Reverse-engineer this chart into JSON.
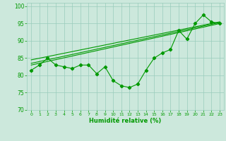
{
  "x": [
    0,
    1,
    2,
    3,
    4,
    5,
    6,
    7,
    8,
    9,
    10,
    11,
    12,
    13,
    14,
    15,
    16,
    17,
    18,
    19,
    20,
    21,
    22,
    23
  ],
  "y": [
    81.5,
    83,
    85,
    83,
    82.5,
    82,
    83,
    83,
    80.5,
    82.5,
    78.5,
    77,
    76.5,
    77.5,
    81.5,
    85,
    86.5,
    87.5,
    93,
    90.5,
    95,
    97.5,
    95.5,
    95
  ],
  "line1_x": [
    0,
    23
  ],
  "line1_y": [
    83,
    95
  ],
  "line2_x": [
    0,
    23
  ],
  "line2_y": [
    83.5,
    95.3
  ],
  "line3_x": [
    0,
    23
  ],
  "line3_y": [
    84.5,
    95.5
  ],
  "bg_color": "#cce8dc",
  "grid_color": "#99ccbb",
  "line_color": "#009900",
  "xlabel": "Humidité relative (%)",
  "ylim": [
    70,
    101
  ],
  "xlim": [
    -0.5,
    23.5
  ],
  "yticks": [
    70,
    75,
    80,
    85,
    90,
    95,
    100
  ],
  "xticks": [
    0,
    1,
    2,
    3,
    4,
    5,
    6,
    7,
    8,
    9,
    10,
    11,
    12,
    13,
    14,
    15,
    16,
    17,
    18,
    19,
    20,
    21,
    22,
    23
  ]
}
